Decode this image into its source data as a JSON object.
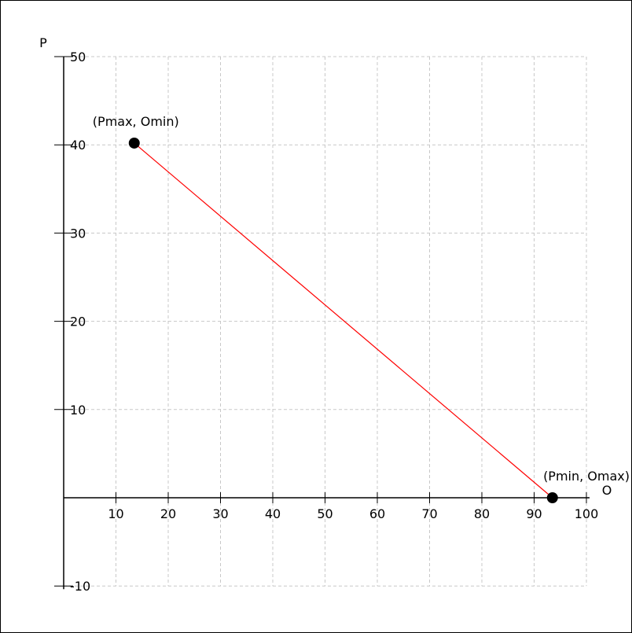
{
  "chart_data": {
    "type": "line",
    "xlabel": "O",
    "ylabel": "P",
    "xlim": [
      0,
      100
    ],
    "ylim": [
      -10,
      50
    ],
    "x_ticks": [
      10,
      20,
      30,
      40,
      50,
      60,
      70,
      80,
      90,
      100
    ],
    "y_ticks": [
      -10,
      10,
      20,
      30,
      40,
      50
    ],
    "grid": true,
    "series": [
      {
        "color": "#ff0000",
        "points": [
          {
            "x": 13.5,
            "y": 40.2,
            "label": "(Pmax, Omin)"
          },
          {
            "x": 93.5,
            "y": 0,
            "label": "(Pmin, Omax)"
          }
        ]
      }
    ],
    "colors": {
      "line": "#ff0000",
      "grid": "#c8c8c8",
      "axis": "#000000",
      "point": "#000000"
    }
  }
}
